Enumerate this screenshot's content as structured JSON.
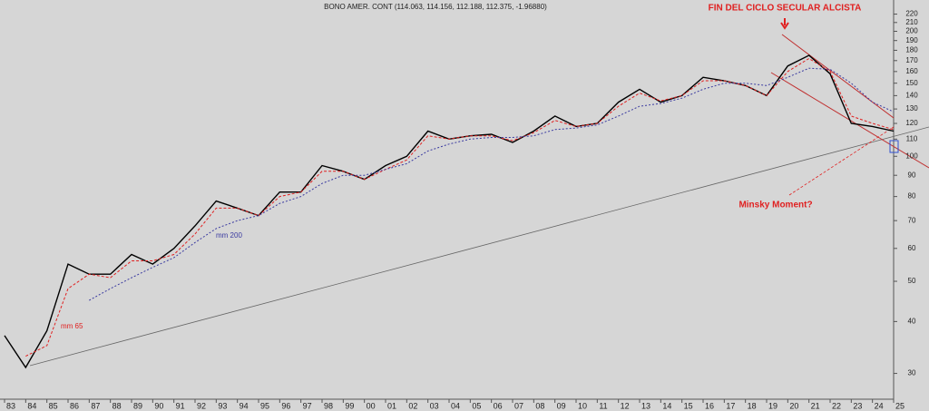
{
  "chart_data": {
    "type": "line",
    "title": "BONO AMER. CONT (114.063, 114.156, 112.188, 112.375, -1.96880)",
    "annotations": [
      "FIN DEL CICLO SECULAR ALCISTA",
      "Minsky Moment?"
    ],
    "categories": [
      "83",
      "84",
      "85",
      "86",
      "87",
      "88",
      "89",
      "90",
      "91",
      "92",
      "93",
      "94",
      "95",
      "96",
      "97",
      "98",
      "99",
      "00",
      "01",
      "02",
      "03",
      "04",
      "05",
      "06",
      "07",
      "08",
      "09",
      "10",
      "11",
      "12",
      "13",
      "14",
      "15",
      "16",
      "17",
      "18",
      "19",
      "20",
      "21",
      "22",
      "23",
      "24",
      "25"
    ],
    "series": [
      {
        "color": "#000000",
        "values": [
          37,
          31,
          38,
          55,
          52,
          52,
          58,
          55,
          60,
          68,
          78,
          75,
          72,
          82,
          82,
          95,
          92,
          88,
          95,
          100,
          115,
          110,
          112,
          113,
          108,
          115,
          125,
          118,
          120,
          135,
          145,
          135,
          140,
          155,
          152,
          148,
          140,
          165,
          175,
          158,
          120,
          118,
          115
        ]
      },
      {
        "name": "mm 65",
        "color": "#e02020",
        "values": [
          null,
          33,
          35,
          48,
          52,
          51,
          56,
          56,
          58,
          65,
          75,
          75,
          72,
          80,
          82,
          92,
          92,
          88,
          93,
          98,
          112,
          110,
          112,
          112,
          109,
          114,
          122,
          118,
          120,
          132,
          142,
          136,
          140,
          152,
          152,
          148,
          140,
          160,
          172,
          160,
          125,
          120,
          116
        ]
      },
      {
        "name": "mm 200",
        "color": "#3a3aa0",
        "values": [
          null,
          null,
          null,
          null,
          45,
          48,
          51,
          54,
          57,
          62,
          67,
          70,
          72,
          77,
          80,
          86,
          90,
          90,
          93,
          96,
          103,
          107,
          110,
          111,
          111,
          112,
          116,
          117,
          119,
          125,
          132,
          134,
          138,
          145,
          150,
          150,
          148,
          155,
          163,
          162,
          150,
          135,
          128
        ]
      }
    ],
    "log_scale": true,
    "ylim": [
      26,
      232
    ],
    "yticks": [
      30,
      40,
      50,
      60,
      70,
      80,
      90,
      100,
      110,
      120,
      130,
      140,
      150,
      160,
      170,
      180,
      190,
      200,
      210,
      220
    ]
  }
}
